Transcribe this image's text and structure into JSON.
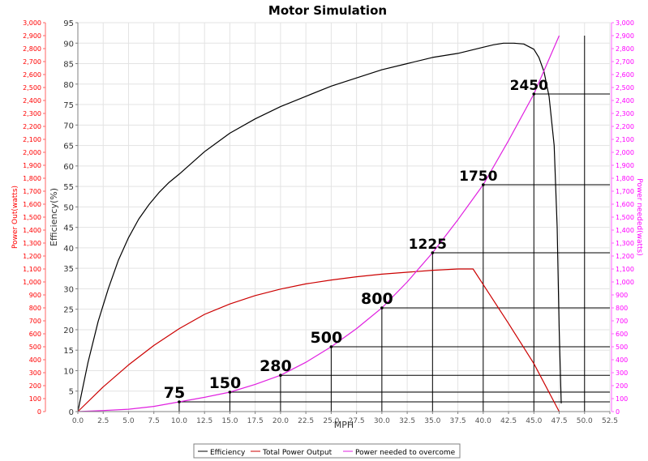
{
  "chart_data": {
    "type": "line",
    "title": "Motor Simulation",
    "xlabel": "MPH",
    "xlim": [
      0,
      52.5
    ],
    "x_ticks": [
      "0.0",
      "2.5",
      "5.0",
      "7.5",
      "10.0",
      "12.5",
      "15.0",
      "17.5",
      "20.0",
      "22.5",
      "25.0",
      "27.5",
      "30.0",
      "32.5",
      "35.0",
      "37.5",
      "40.0",
      "42.5",
      "45.0",
      "47.5",
      "50.0",
      "52.5"
    ],
    "axes": {
      "efficiency": {
        "label": "Efficiency(%)",
        "range": [
          0,
          95
        ],
        "color": "#000000"
      },
      "power_out": {
        "label": "Power Out(watts)",
        "range": [
          0,
          3000
        ],
        "color": "#ff0000"
      },
      "power_needed": {
        "label": "Power needed(watts)",
        "range": [
          0,
          3000
        ],
        "color": "#ff00ff"
      }
    },
    "efficiency_ticks": [
      "0",
      "5",
      "10",
      "15",
      "20",
      "25",
      "30",
      "35",
      "40",
      "45",
      "50",
      "55",
      "60",
      "65",
      "70",
      "75",
      "80",
      "85",
      "90",
      "95"
    ],
    "power_ticks": [
      "0",
      "100",
      "200",
      "300",
      "400",
      "500",
      "600",
      "700",
      "800",
      "900",
      "1,000",
      "1,100",
      "1,200",
      "1,300",
      "1,400",
      "1,500",
      "1,600",
      "1,700",
      "1,800",
      "1,900",
      "2,000",
      "2,100",
      "2,200",
      "2,300",
      "2,400",
      "2,500",
      "2,600",
      "2,700",
      "2,800",
      "2,900",
      "3,000"
    ],
    "grid": true,
    "legend": {
      "placement": "bottom",
      "entries": [
        {
          "label": "Efficiency",
          "color": "#000000"
        },
        {
          "label": "Total Power Output",
          "color": "#cc0000"
        },
        {
          "label": "Power needed to overcome",
          "color": "#e020e0"
        }
      ]
    },
    "series": [
      {
        "name": "Efficiency",
        "axis": "efficiency",
        "color": "#000000",
        "x": [
          0,
          0.5,
          1,
          2,
          3,
          4,
          5,
          6,
          7,
          8,
          9,
          10,
          12.5,
          15,
          17.5,
          20,
          22.5,
          25,
          27.5,
          30,
          32.5,
          35,
          37.5,
          40,
          41,
          42,
          43,
          44,
          45,
          45.5,
          46,
          46.5,
          47,
          47.3,
          47.5,
          47.7
        ],
        "y": [
          0,
          6,
          12,
          22,
          30,
          37,
          42.5,
          47,
          50.5,
          53.5,
          56,
          58,
          63.5,
          68,
          71.5,
          74.5,
          77,
          79.5,
          81.5,
          83.5,
          85,
          86.5,
          87.5,
          89,
          89.6,
          90,
          90,
          89.8,
          88.5,
          86.5,
          83,
          77,
          65,
          45,
          20,
          2
        ]
      },
      {
        "name": "Total Power Output",
        "axis": "power_out",
        "color": "#cc0000",
        "x": [
          0,
          2.5,
          5,
          7.5,
          10,
          12.5,
          15,
          17.5,
          20,
          22.5,
          25,
          27.5,
          30,
          32.5,
          35,
          37.5,
          39,
          40,
          42.5,
          45,
          47.5
        ],
        "y": [
          0,
          190,
          360,
          510,
          640,
          750,
          830,
          895,
          945,
          985,
          1015,
          1040,
          1060,
          1075,
          1090,
          1100,
          1100,
          980,
          680,
          370,
          0
        ]
      },
      {
        "name": "Power needed to overcome",
        "axis": "power_needed",
        "color": "#e020e0",
        "x": [
          0,
          2.5,
          5,
          7.5,
          10,
          12.5,
          15,
          17.5,
          20,
          22.5,
          25,
          27.5,
          30,
          32.5,
          35,
          37.5,
          40,
          42.5,
          45,
          47.5
        ],
        "y": [
          0,
          8,
          18,
          40,
          75,
          110,
          150,
          210,
          280,
          380,
          500,
          640,
          800,
          1000,
          1225,
          1480,
          1750,
          2090,
          2450,
          2900
        ]
      }
    ],
    "annotations": [
      {
        "x": 10,
        "y": 75,
        "text": "75"
      },
      {
        "x": 15,
        "y": 150,
        "text": "150"
      },
      {
        "x": 20,
        "y": 280,
        "text": "280"
      },
      {
        "x": 25,
        "y": 500,
        "text": "500"
      },
      {
        "x": 30,
        "y": 800,
        "text": "800"
      },
      {
        "x": 35,
        "y": 1225,
        "text": "1225"
      },
      {
        "x": 40,
        "y": 1750,
        "text": "1750"
      },
      {
        "x": 45,
        "y": 2450,
        "text": "2450"
      }
    ],
    "extra_vertical_line": {
      "x": 50,
      "y_top": 2900
    }
  }
}
